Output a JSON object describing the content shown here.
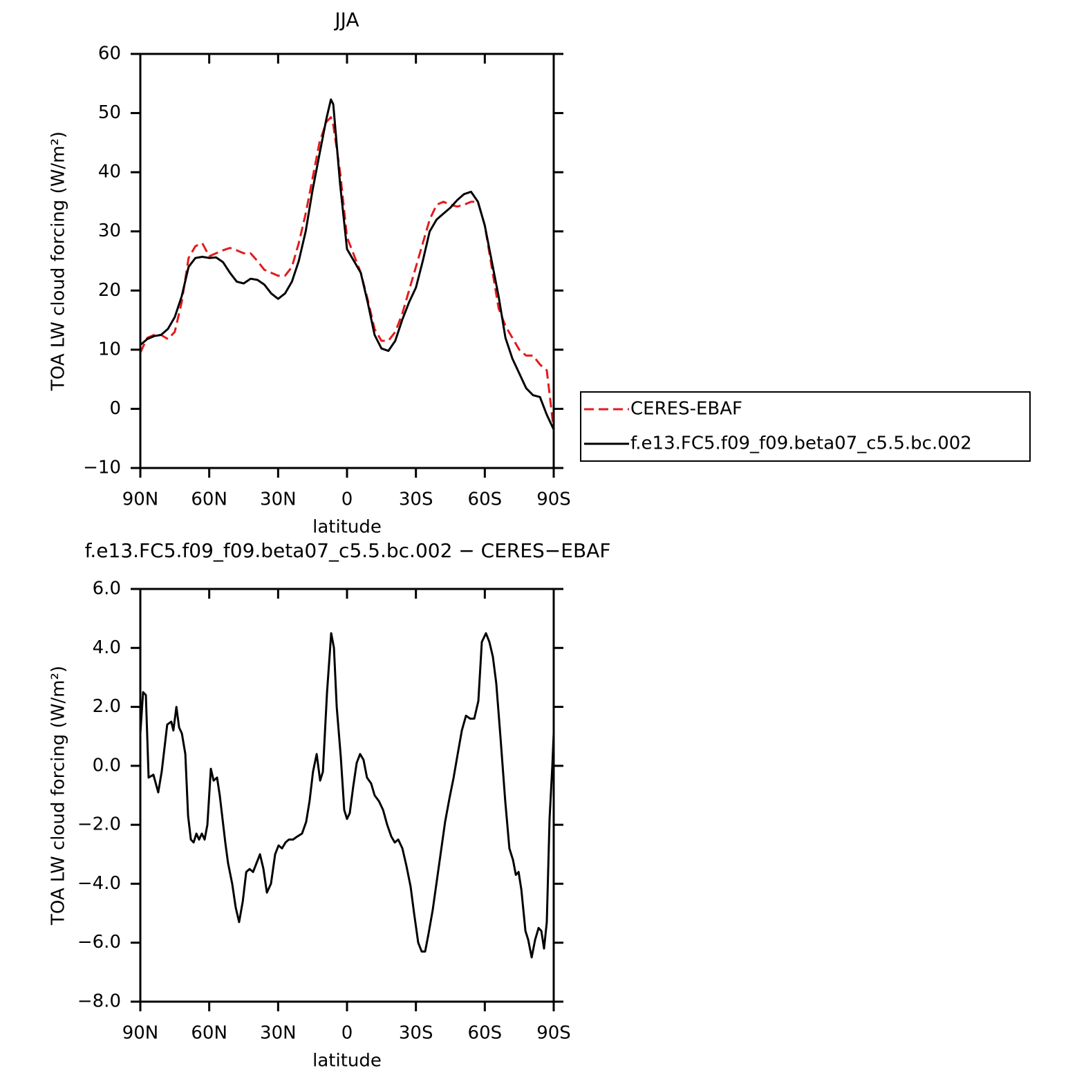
{
  "chart_data": [
    {
      "type": "line",
      "title": "JJA",
      "xlabel": "latitude",
      "ylabel": "TOA LW cloud forcing (W/m²)",
      "x": [
        90,
        87,
        84,
        81,
        78,
        75,
        72,
        69,
        66,
        63,
        60,
        57,
        54,
        51,
        48,
        45,
        42,
        39,
        36,
        33,
        30,
        27,
        24,
        21,
        18,
        15,
        12,
        9,
        7,
        6,
        3,
        0,
        -3,
        -6,
        -9,
        -12,
        -15,
        -18,
        -21,
        -24,
        -27,
        -30,
        -33,
        -36,
        -39,
        -42,
        -45,
        -48,
        -51,
        -54,
        -57,
        -60,
        -63,
        -66,
        -69,
        -72,
        -75,
        -78,
        -81,
        -84,
        -87,
        -90
      ],
      "series": [
        {
          "name": "CERES-EBAF",
          "color": "#e41a1c",
          "dash": true,
          "values": [
            9.5,
            12,
            12.5,
            12.5,
            11.8,
            13,
            18,
            25.5,
            27.5,
            28,
            25.8,
            26.3,
            26.8,
            27.2,
            26.8,
            26.3,
            26.3,
            25,
            23.5,
            23,
            22.5,
            22.5,
            24,
            28,
            33,
            39,
            45,
            48.5,
            49.3,
            48,
            40,
            29,
            26,
            23,
            18.5,
            13.5,
            11.5,
            11.5,
            13,
            16,
            20,
            24,
            28,
            32,
            34.5,
            35,
            34.5,
            34.2,
            34.5,
            35,
            35,
            31,
            24,
            17,
            14,
            12,
            10,
            9,
            9,
            7.5,
            6.5,
            -3.5
          ]
        },
        {
          "name": "f.e13.FC5.f09_f09.beta07_c5.5.bc.002",
          "color": "#000000",
          "dash": false,
          "values": [
            10.8,
            11.8,
            12.3,
            12.5,
            13.5,
            15.5,
            19,
            24,
            25.5,
            25.7,
            25.5,
            25.6,
            24.8,
            23,
            21.5,
            21.2,
            22,
            21.8,
            21,
            19.5,
            18.6,
            19.5,
            21.5,
            25,
            30,
            37,
            43,
            49,
            52.3,
            51.5,
            38,
            27,
            25,
            23,
            18,
            12.5,
            10.2,
            9.8,
            11.5,
            15,
            18,
            20.5,
            25,
            30,
            32,
            33,
            34,
            35.3,
            36.3,
            36.7,
            35,
            31,
            25,
            19,
            12,
            8.5,
            6,
            3.5,
            2.3,
            2,
            -1,
            -3.5
          ]
        }
      ],
      "xlim": [
        90,
        -90
      ],
      "xticks": [
        {
          "value": 90,
          "label": "90N"
        },
        {
          "value": 60,
          "label": "60N"
        },
        {
          "value": 30,
          "label": "30N"
        },
        0,
        {
          "value": -30,
          "label": "30S"
        },
        {
          "value": -60,
          "label": "60S"
        },
        {
          "value": -90,
          "label": "90S"
        }
      ],
      "ylim": [
        -10,
        60
      ],
      "yticks": [
        {
          "value": -10,
          "label": "−10"
        },
        0,
        10,
        20,
        30,
        40,
        50,
        60
      ],
      "legend": "right"
    },
    {
      "type": "line",
      "title": "f.e13.FC5.f09_f09.beta07_c5.5.bc.002 − CERES−EBAF",
      "xlabel": "latitude",
      "ylabel": "TOA LW cloud forcing (W/m²)",
      "x": [
        90,
        88.8,
        87.6,
        86.4,
        84.3,
        82.2,
        80.7,
        78.3,
        76.5,
        75.6,
        74.3,
        73.1,
        71.9,
        70.4,
        69.2,
        68,
        66.8,
        65.6,
        64.4,
        63.2,
        62,
        60.8,
        59.3,
        58.1,
        56.6,
        55.4,
        54.2,
        53,
        51.8,
        50,
        48.5,
        47,
        45.4,
        43.9,
        42.4,
        40.9,
        39.4,
        37.9,
        36.4,
        34.9,
        33.1,
        31.3,
        29.8,
        28.3,
        26.8,
        25.3,
        23.5,
        21.7,
        19.6,
        17.8,
        16.3,
        14.8,
        13.2,
        11.7,
        10.5,
        8.7,
        6.9,
        5.7,
        4.5,
        2.7,
        1.2,
        0,
        -1.2,
        -2.7,
        -4.2,
        -5.7,
        -7.2,
        -8.7,
        -10.5,
        -12,
        -13.9,
        -15.7,
        -17.5,
        -19.3,
        -20.8,
        -22.3,
        -24.1,
        -25.9,
        -27.7,
        -29.2,
        -31,
        -32.5,
        -34,
        -35.5,
        -37.3,
        -39.1,
        -40.9,
        -42.7,
        -44.6,
        -46.4,
        -48.2,
        -50,
        -51.8,
        -53.6,
        -55.4,
        -57.2,
        -58.7,
        -60.5,
        -62,
        -63.5,
        -65,
        -66.8,
        -68.9,
        -70.7,
        -72.3,
        -73.5,
        -74.7,
        -75.9,
        -77.7,
        -78.9,
        -80.4,
        -81.9,
        -83.4,
        -84.6,
        -85.8,
        -87,
        -88.2,
        -89.4,
        -90
      ],
      "series": [
        {
          "color": "#000000",
          "dash": false,
          "values": [
            1.1,
            2.5,
            2.4,
            -0.4,
            -0.3,
            -0.9,
            -0.2,
            1.4,
            1.5,
            1.2,
            2.0,
            1.3,
            1.1,
            0.4,
            -1.7,
            -2.5,
            -2.6,
            -2.3,
            -2.5,
            -2.3,
            -2.5,
            -2.0,
            -0.1,
            -0.5,
            -0.4,
            -1.0,
            -1.8,
            -2.6,
            -3.3,
            -4.0,
            -4.8,
            -5.3,
            -4.6,
            -3.6,
            -3.5,
            -3.6,
            -3.3,
            -3.0,
            -3.5,
            -4.3,
            -4.0,
            -3.0,
            -2.7,
            -2.8,
            -2.6,
            -2.5,
            -2.5,
            -2.4,
            -2.3,
            -1.9,
            -1.2,
            -0.2,
            0.4,
            -0.5,
            -0.2,
            2.5,
            4.5,
            4.0,
            2.0,
            0.3,
            -1.5,
            -1.8,
            -1.6,
            -0.7,
            0.1,
            0.4,
            0.2,
            -0.4,
            -0.6,
            -1.0,
            -1.2,
            -1.5,
            -2.0,
            -2.4,
            -2.6,
            -2.5,
            -2.8,
            -3.4,
            -4.1,
            -5.0,
            -6.0,
            -6.3,
            -6.3,
            -5.7,
            -4.9,
            -3.9,
            -2.9,
            -1.9,
            -1.1,
            -0.4,
            0.4,
            1.2,
            1.7,
            1.6,
            1.6,
            2.2,
            4.2,
            4.5,
            4.2,
            3.7,
            2.8,
            1.0,
            -1.2,
            -2.8,
            -3.2,
            -3.7,
            -3.6,
            -4.2,
            -5.6,
            -5.9,
            -6.5,
            -5.9,
            -5.5,
            -5.6,
            -6.2,
            -5.3,
            -1.8,
            0,
            1.1
          ]
        }
      ],
      "xlim": [
        90,
        -90
      ],
      "xticks": [
        {
          "value": 90,
          "label": "90N"
        },
        {
          "value": 60,
          "label": "60N"
        },
        {
          "value": 30,
          "label": "30N"
        },
        0,
        {
          "value": -30,
          "label": "30S"
        },
        {
          "value": -60,
          "label": "60S"
        },
        {
          "value": -90,
          "label": "90S"
        }
      ],
      "ylim": [
        -8,
        6
      ],
      "yticks": [
        {
          "value": -8,
          "label": "−8.0"
        },
        {
          "value": -6,
          "label": "−6.0"
        },
        {
          "value": -4,
          "label": "−4.0"
        },
        {
          "value": -2,
          "label": "−2.0"
        },
        {
          "value": 0,
          "label": "0.0"
        },
        {
          "value": 2,
          "label": "2.0"
        },
        {
          "value": 4,
          "label": "4.0"
        },
        {
          "value": 6,
          "label": "6.0"
        }
      ]
    }
  ]
}
